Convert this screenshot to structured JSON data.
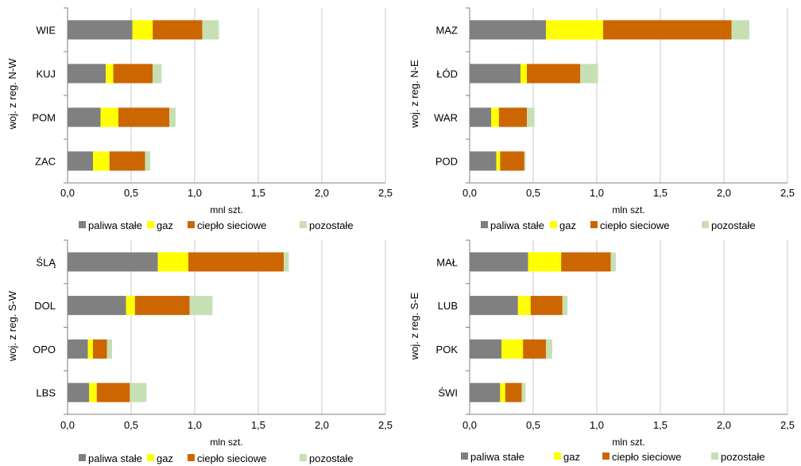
{
  "colors": {
    "paliwa_stale": "#808080",
    "gaz": "#ffff00",
    "cieplo_sieciowe": "#cc6600",
    "pozostale": "#c6e0b4",
    "grid": "#c8c8c8",
    "axis": "#808080"
  },
  "chart_data": [
    {
      "type": "bar",
      "orientation": "horizontal",
      "stacked": true,
      "ylabel": "woj. z reg. N-W",
      "xlabel": "mnl szt.",
      "xlim": [
        0,
        2.5
      ],
      "xticks": [
        "0,0",
        "0,5",
        "1,0",
        "1,5",
        "2,0",
        "2,5"
      ],
      "categories": [
        "WIE",
        "KUJ",
        "POM",
        "ZAC"
      ],
      "series": [
        {
          "name": "paliwa stałe",
          "values": [
            0.51,
            0.3,
            0.26,
            0.2
          ]
        },
        {
          "name": "gaz",
          "values": [
            0.16,
            0.06,
            0.14,
            0.13
          ]
        },
        {
          "name": "ciepło sieciowe",
          "values": [
            0.39,
            0.31,
            0.4,
            0.28
          ]
        },
        {
          "name": "pozostałe",
          "values": [
            0.13,
            0.07,
            0.05,
            0.04
          ]
        }
      ],
      "legend": [
        "paliwa stałe",
        "gaz",
        "ciepło sieciowe",
        "pozostałe"
      ],
      "grid": true,
      "legend_position": "bottom"
    },
    {
      "type": "bar",
      "orientation": "horizontal",
      "stacked": true,
      "ylabel": "woj. z reg. N-E",
      "xlabel": "mln szt.",
      "xlim": [
        0,
        2.5
      ],
      "xticks": [
        "0,0",
        "0,5",
        "1,0",
        "1,5",
        "2,0",
        "2,5"
      ],
      "categories": [
        "MAZ",
        "ŁÓD",
        "WAR",
        "POD"
      ],
      "series": [
        {
          "name": "paliwa stałe",
          "values": [
            0.6,
            0.4,
            0.17,
            0.21
          ]
        },
        {
          "name": "gaz",
          "values": [
            0.45,
            0.05,
            0.06,
            0.03
          ]
        },
        {
          "name": "ciepło sieciowe",
          "values": [
            1.01,
            0.42,
            0.22,
            0.19
          ]
        },
        {
          "name": "pozostałe",
          "values": [
            0.14,
            0.14,
            0.06,
            0.01
          ]
        }
      ],
      "legend": [
        "paliwa stałe",
        "gaz",
        "ciepło sieciowe",
        "pozostałe"
      ],
      "grid": true,
      "legend_position": "bottom"
    },
    {
      "type": "bar",
      "orientation": "horizontal",
      "stacked": true,
      "ylabel": "woj. z reg. S-W",
      "xlabel": "mln szt.",
      "xlim": [
        0,
        2.5
      ],
      "xticks": [
        "0,0",
        "0,5",
        "1,0",
        "1,5",
        "2,0",
        "2,5"
      ],
      "categories": [
        "ŚLĄ",
        "DOL",
        "OPO",
        "LBS"
      ],
      "series": [
        {
          "name": "paliwa stałe",
          "values": [
            0.71,
            0.46,
            0.16,
            0.17
          ]
        },
        {
          "name": "gaz",
          "values": [
            0.24,
            0.07,
            0.04,
            0.06
          ]
        },
        {
          "name": "ciepło sieciowe",
          "values": [
            0.75,
            0.43,
            0.11,
            0.26
          ]
        },
        {
          "name": "pozostałe",
          "values": [
            0.04,
            0.18,
            0.04,
            0.13
          ]
        }
      ],
      "legend": [
        "paliwa stałe",
        "gaz",
        "ciepło sieciowe",
        "pozostałe"
      ],
      "grid": true,
      "legend_position": "bottom"
    },
    {
      "type": "bar",
      "orientation": "horizontal",
      "stacked": true,
      "ylabel": "woj. z reg. S-E",
      "xlabel": "mln szt.",
      "xlim": [
        0,
        2.5
      ],
      "xticks": [
        "0,0",
        "0,5",
        "1,0",
        "1,5",
        "2,0",
        "2,5"
      ],
      "categories": [
        "MAŁ",
        "LUB",
        "POK",
        "ŚWI"
      ],
      "series": [
        {
          "name": "paliwa stałe",
          "values": [
            0.46,
            0.38,
            0.25,
            0.24
          ]
        },
        {
          "name": "gaz",
          "values": [
            0.26,
            0.1,
            0.17,
            0.04
          ]
        },
        {
          "name": "ciepło sieciowe",
          "values": [
            0.39,
            0.25,
            0.18,
            0.13
          ]
        },
        {
          "name": "pozostałe",
          "values": [
            0.04,
            0.04,
            0.05,
            0.03
          ]
        }
      ],
      "legend": [
        "paliwa stałe",
        "gaz",
        "ciepło sieciowe",
        "pozostałe"
      ],
      "grid": true,
      "legend_position": "bottom"
    }
  ]
}
